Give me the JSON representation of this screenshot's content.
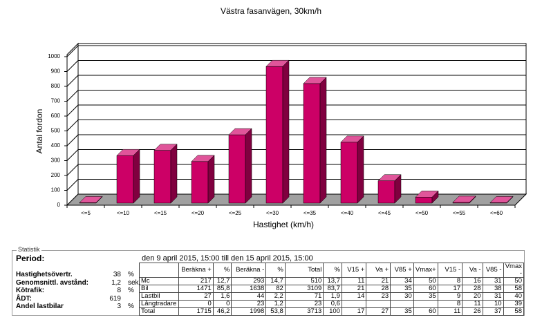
{
  "chart_data": {
    "type": "bar3d",
    "title": "Västra fasanvägen, 30km/h",
    "y_label": "Antal fordon",
    "x_label": "Hastighet (km/h)",
    "categories": [
      "<=5",
      "<=10",
      "<=15",
      "<=20",
      "<=25",
      "<=30",
      "<=35",
      "<=40",
      "<=45",
      "<=50",
      "<=55",
      "<=60"
    ],
    "values": [
      3,
      320,
      355,
      280,
      460,
      920,
      805,
      410,
      150,
      40,
      5,
      3
    ],
    "color": "#cc0066",
    "ylim": [
      0,
      1000
    ],
    "yticks": [
      0,
      100,
      200,
      300,
      400,
      500,
      600,
      700,
      800,
      900,
      1000
    ],
    "grid": true
  },
  "statistics": {
    "legend": "Statistik",
    "period_label": "Period:",
    "period": "den 9 april 2015, 15:00 till den 15 april 2015, 15:00",
    "summary": [
      {
        "label": "Hastighetsövertr.",
        "value": "38",
        "unit": "%"
      },
      {
        "label": "Genomsnittl. avstånd:",
        "value": "1,2",
        "unit": "sek."
      },
      {
        "label": "Kötrafik:",
        "value": "8",
        "unit": "%"
      },
      {
        "label": "ÅDT:",
        "value": "619"
      },
      {
        "label": "Andel lastbilar",
        "value": "3",
        "unit": "%"
      }
    ],
    "table": {
      "header": [
        "Beräkna +",
        "%",
        "Beräkna -",
        "%",
        "Total",
        "%",
        "V15 +",
        "Va +",
        "V85 +",
        "Vmax+",
        "V15 -",
        "Va -",
        "V85 -",
        "Vmax -"
      ],
      "rows": [
        [
          "Mc",
          "217",
          "12,7",
          "293",
          "14,7",
          "510",
          "13,7",
          "11",
          "21",
          "34",
          "50",
          "8",
          "16",
          "31",
          "50"
        ],
        [
          "Bil",
          "1471",
          "85,8",
          "1638",
          "82",
          "3109",
          "83,7",
          "21",
          "28",
          "35",
          "60",
          "17",
          "28",
          "38",
          "58"
        ],
        [
          "Lastbil",
          "27",
          "1,6",
          "44",
          "2,2",
          "71",
          "1,9",
          "14",
          "23",
          "30",
          "35",
          "9",
          "20",
          "31",
          "40"
        ],
        [
          "Långtradare",
          "0",
          "0",
          "23",
          "1,2",
          "23",
          "0,6",
          null,
          null,
          null,
          null,
          "8",
          "11",
          "10",
          "39"
        ],
        [
          "Total",
          "1715",
          "46,2",
          "1998",
          "53,8",
          "3713",
          "100",
          "17",
          "27",
          "35",
          "60",
          "11",
          "26",
          "37",
          "58"
        ]
      ]
    }
  }
}
